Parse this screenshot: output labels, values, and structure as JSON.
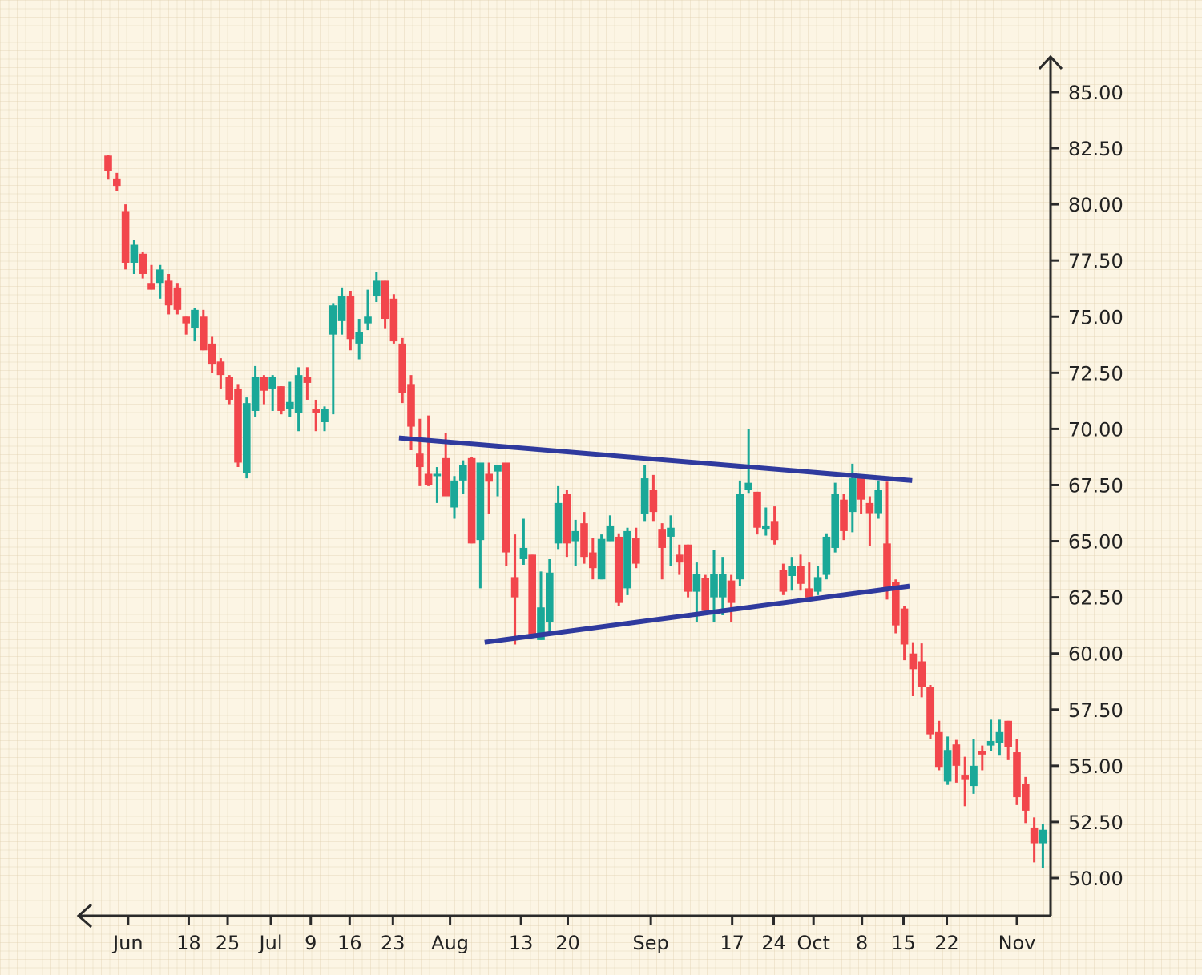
{
  "chart_data": {
    "type": "candlestick",
    "title": "",
    "xlabel": "",
    "ylabel": "",
    "ylim": [
      48.3,
      87.0
    ],
    "grid": true,
    "colors": {
      "up": "#1aa898",
      "down": "#f2464c",
      "trendline": "#2f3a9e",
      "axis": "#2a2a2a",
      "background": "#fcf5e4"
    },
    "y_ticks": [
      "85.00",
      "82.50",
      "80.00",
      "77.50",
      "75.00",
      "72.50",
      "70.00",
      "67.50",
      "65.00",
      "62.50",
      "60.00",
      "57.50",
      "55.00",
      "52.50",
      "50.00"
    ],
    "x_ticks": [
      {
        "label": "Jun",
        "index": 2.3
      },
      {
        "label": "18",
        "index": 9.3
      },
      {
        "label": "25",
        "index": 13.8
      },
      {
        "label": "Jul",
        "index": 18.8
      },
      {
        "label": "9",
        "index": 23.4
      },
      {
        "label": "16",
        "index": 27.9
      },
      {
        "label": "23",
        "index": 32.9
      },
      {
        "label": "Aug",
        "index": 39.5
      },
      {
        "label": "13",
        "index": 47.7
      },
      {
        "label": "20",
        "index": 53.1
      },
      {
        "label": "Sep",
        "index": 62.7
      },
      {
        "label": "17",
        "index": 72.1
      },
      {
        "label": "24",
        "index": 76.9
      },
      {
        "label": "Oct",
        "index": 81.5
      },
      {
        "label": "8",
        "index": 87.1
      },
      {
        "label": "15",
        "index": 91.9
      },
      {
        "label": "22",
        "index": 96.9
      },
      {
        "label": "Nov",
        "index": 105.0
      }
    ],
    "candle_fields": [
      "open",
      "high",
      "low",
      "close"
    ],
    "candles": [
      [
        82.17,
        82.2,
        81.1,
        81.5
      ],
      [
        81.15,
        81.4,
        80.6,
        80.82
      ],
      [
        79.7,
        80.0,
        77.1,
        77.4
      ],
      [
        77.4,
        78.4,
        76.9,
        78.2
      ],
      [
        77.8,
        77.9,
        76.7,
        76.9
      ],
      [
        76.5,
        77.3,
        76.2,
        76.2
      ],
      [
        76.5,
        77.3,
        75.8,
        77.1
      ],
      [
        76.6,
        76.9,
        75.1,
        75.5
      ],
      [
        76.3,
        76.5,
        75.1,
        75.3
      ],
      [
        75.0,
        75.0,
        74.2,
        74.7
      ],
      [
        74.5,
        75.4,
        73.9,
        75.3
      ],
      [
        75.0,
        75.3,
        73.5,
        73.5
      ],
      [
        73.8,
        74.1,
        72.5,
        72.9
      ],
      [
        73.0,
        73.15,
        71.8,
        72.4
      ],
      [
        72.3,
        72.4,
        71.1,
        71.3
      ],
      [
        71.8,
        72.0,
        68.3,
        68.5
      ],
      [
        68.05,
        71.4,
        67.8,
        71.15
      ],
      [
        70.8,
        72.8,
        70.55,
        72.3
      ],
      [
        72.3,
        72.4,
        71.1,
        71.7
      ],
      [
        71.8,
        72.4,
        70.8,
        72.3
      ],
      [
        71.9,
        71.9,
        70.65,
        70.8
      ],
      [
        70.9,
        72.1,
        70.55,
        71.2
      ],
      [
        70.7,
        72.75,
        69.9,
        72.4
      ],
      [
        72.3,
        72.75,
        71.3,
        72.05
      ],
      [
        70.9,
        71.3,
        69.9,
        70.7
      ],
      [
        70.3,
        71.0,
        69.9,
        70.9
      ],
      [
        74.2,
        75.6,
        70.65,
        75.5
      ],
      [
        74.8,
        76.3,
        74.2,
        75.9
      ],
      [
        75.9,
        76.15,
        73.5,
        74.0
      ],
      [
        73.8,
        74.9,
        73.1,
        74.3
      ],
      [
        74.7,
        76.2,
        74.4,
        75.0
      ],
      [
        75.9,
        77.0,
        75.65,
        76.6
      ],
      [
        76.6,
        76.6,
        74.45,
        74.9
      ],
      [
        75.8,
        76.0,
        73.8,
        73.9
      ],
      [
        73.8,
        74.05,
        71.15,
        71.6
      ],
      [
        72.0,
        72.4,
        69.05,
        70.1
      ],
      [
        68.9,
        70.45,
        67.45,
        68.3
      ],
      [
        68.0,
        70.6,
        67.45,
        67.5
      ],
      [
        67.9,
        68.3,
        66.7,
        68.0
      ],
      [
        68.7,
        69.8,
        67.0,
        67.0
      ],
      [
        66.5,
        67.9,
        66.0,
        67.7
      ],
      [
        67.7,
        68.6,
        67.1,
        68.4
      ],
      [
        68.7,
        68.75,
        64.9,
        64.9
      ],
      [
        65.05,
        68.5,
        62.9,
        68.5
      ],
      [
        68.0,
        68.5,
        66.2,
        67.65
      ],
      [
        68.1,
        68.4,
        67.0,
        68.4
      ],
      [
        68.5,
        68.5,
        63.9,
        64.5
      ],
      [
        63.4,
        65.3,
        60.4,
        62.5
      ],
      [
        64.2,
        66.0,
        63.95,
        64.7
      ],
      [
        64.4,
        64.4,
        60.85,
        60.85
      ],
      [
        60.6,
        63.65,
        60.6,
        62.05
      ],
      [
        61.4,
        64.2,
        60.9,
        63.6
      ],
      [
        64.9,
        67.45,
        64.65,
        66.7
      ],
      [
        67.1,
        67.3,
        64.3,
        64.9
      ],
      [
        65.0,
        65.95,
        63.9,
        65.45
      ],
      [
        65.8,
        66.3,
        64.0,
        64.3
      ],
      [
        64.5,
        65.15,
        63.3,
        63.8
      ],
      [
        63.3,
        65.3,
        63.3,
        65.1
      ],
      [
        65.0,
        66.15,
        65.0,
        65.7
      ],
      [
        65.2,
        65.35,
        62.1,
        62.25
      ],
      [
        62.9,
        65.6,
        62.6,
        65.45
      ],
      [
        65.15,
        65.6,
        63.8,
        64.0
      ],
      [
        66.2,
        68.4,
        65.9,
        67.8
      ],
      [
        67.3,
        67.95,
        65.9,
        66.3
      ],
      [
        65.55,
        65.8,
        63.3,
        64.7
      ],
      [
        65.2,
        66.15,
        63.9,
        65.6
      ],
      [
        64.4,
        64.85,
        63.5,
        64.05
      ],
      [
        64.85,
        64.85,
        62.5,
        62.75
      ],
      [
        62.75,
        64.05,
        61.4,
        63.55
      ],
      [
        63.35,
        63.5,
        61.9,
        61.9
      ],
      [
        62.5,
        64.6,
        61.4,
        63.55
      ],
      [
        62.5,
        64.3,
        61.7,
        63.55
      ],
      [
        63.25,
        63.5,
        61.4,
        62.25
      ],
      [
        63.3,
        67.7,
        63.0,
        67.1
      ],
      [
        67.3,
        70.0,
        67.15,
        67.6
      ],
      [
        67.2,
        67.2,
        65.3,
        65.6
      ],
      [
        65.55,
        66.5,
        65.25,
        65.7
      ],
      [
        65.9,
        66.55,
        64.85,
        65.05
      ],
      [
        63.7,
        64.0,
        62.6,
        62.75
      ],
      [
        63.45,
        64.3,
        62.8,
        63.9
      ],
      [
        63.9,
        64.4,
        62.8,
        63.1
      ],
      [
        62.9,
        64.05,
        62.5,
        62.5
      ],
      [
        62.75,
        63.9,
        62.6,
        63.4
      ],
      [
        63.5,
        65.35,
        63.3,
        65.2
      ],
      [
        64.7,
        67.6,
        64.5,
        67.1
      ],
      [
        66.85,
        67.1,
        65.05,
        65.45
      ],
      [
        66.3,
        68.45,
        65.4,
        67.8
      ],
      [
        67.8,
        67.8,
        66.2,
        66.85
      ],
      [
        66.7,
        67.0,
        64.8,
        66.25
      ],
      [
        66.25,
        67.7,
        66.0,
        67.3
      ],
      [
        64.9,
        67.65,
        62.4,
        62.95
      ],
      [
        63.2,
        63.3,
        60.9,
        61.25
      ],
      [
        62.0,
        62.1,
        59.7,
        60.4
      ],
      [
        60.0,
        60.5,
        58.1,
        59.3
      ],
      [
        59.65,
        60.45,
        58.05,
        58.5
      ],
      [
        58.5,
        58.6,
        56.2,
        56.4
      ],
      [
        56.5,
        57.0,
        54.8,
        54.95
      ],
      [
        54.3,
        56.3,
        54.15,
        55.7
      ],
      [
        55.95,
        56.15,
        54.25,
        55.0
      ],
      [
        54.6,
        55.4,
        53.2,
        54.4
      ],
      [
        54.1,
        56.2,
        53.75,
        55.0
      ],
      [
        55.65,
        55.9,
        54.8,
        55.5
      ],
      [
        55.9,
        57.05,
        55.65,
        56.1
      ],
      [
        56.0,
        57.05,
        55.45,
        56.5
      ],
      [
        57.0,
        57.0,
        55.25,
        55.85
      ],
      [
        55.6,
        56.2,
        53.25,
        53.6
      ],
      [
        54.2,
        54.5,
        52.45,
        53.0
      ],
      [
        52.25,
        52.7,
        50.7,
        51.55
      ],
      [
        51.55,
        52.4,
        50.45,
        52.15
      ]
    ],
    "trendlines": [
      {
        "name": "upper-resistance",
        "from": {
          "index": 33.6,
          "value": 69.6
        },
        "to": {
          "index": 92.9,
          "value": 67.7
        }
      },
      {
        "name": "lower-support",
        "from": {
          "index": 43.5,
          "value": 60.5
        },
        "to": {
          "index": 92.6,
          "value": 63.0
        }
      }
    ]
  }
}
